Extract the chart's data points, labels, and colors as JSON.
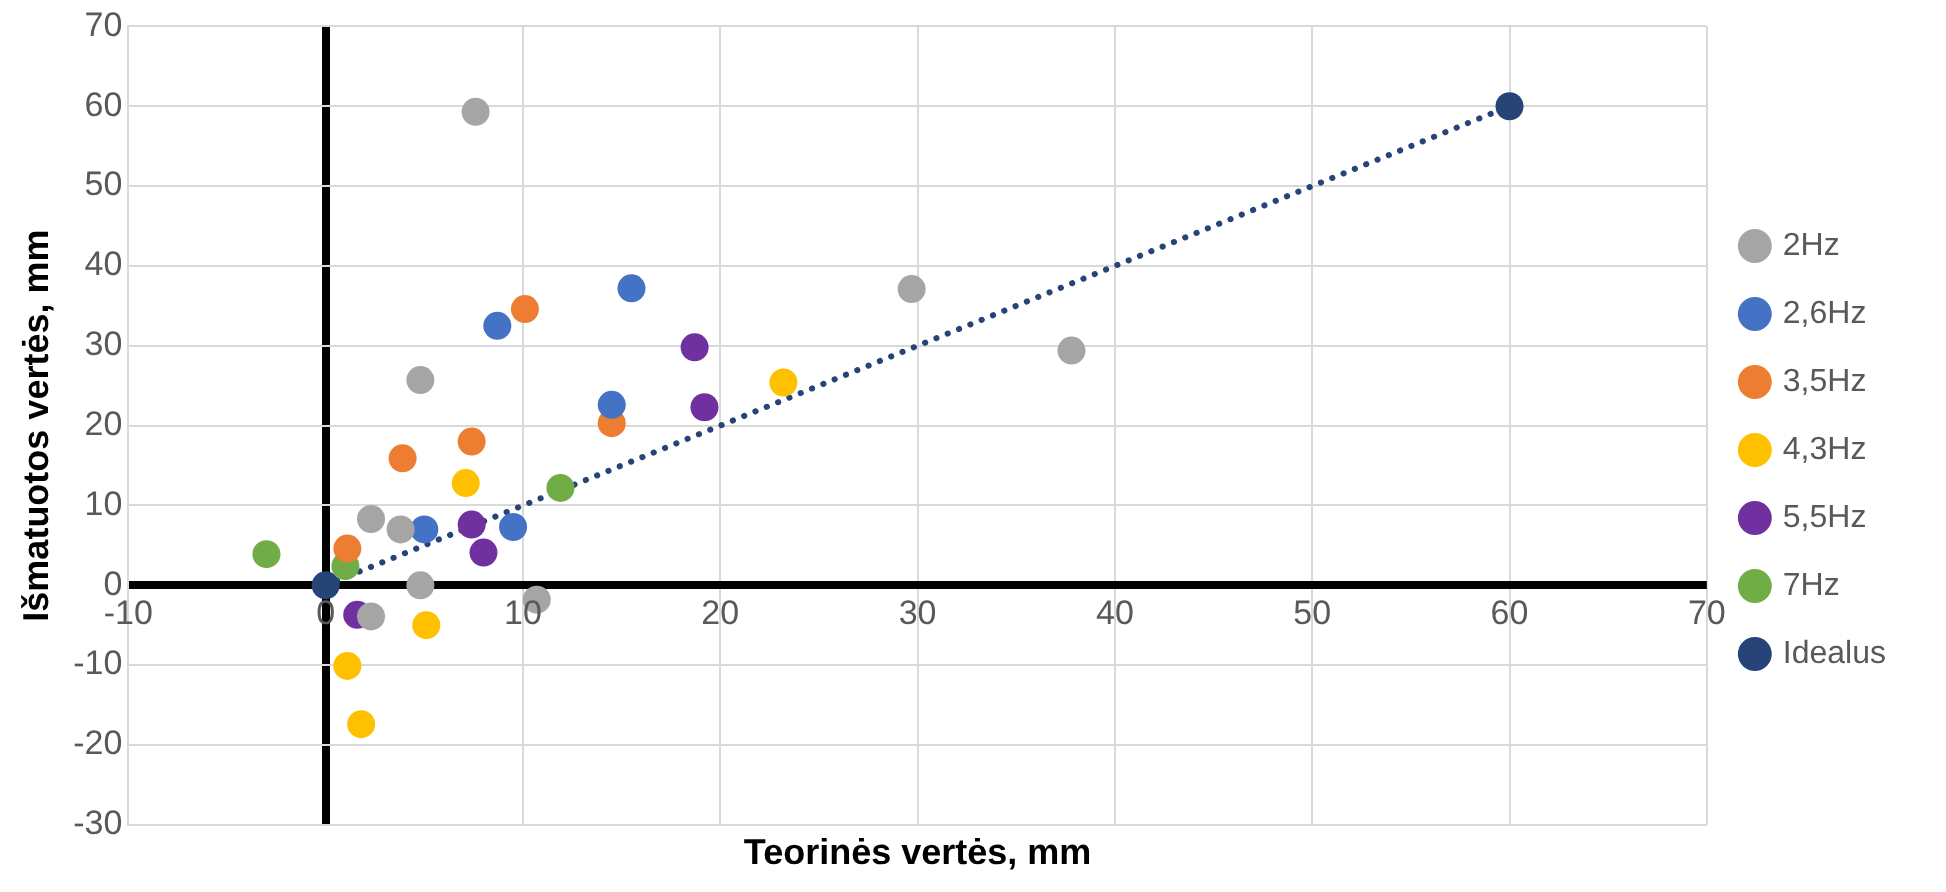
{
  "chart_data": {
    "type": "scatter",
    "xlabel": "Teorinės vertės, mm",
    "ylabel": "Išmatuotos vertės, mm",
    "xlim": [
      -10,
      70
    ],
    "xticks": [
      -10,
      0,
      10,
      20,
      30,
      40,
      50,
      60,
      70
    ],
    "ylim": [
      -30,
      70
    ],
    "yticks": [
      -30,
      -20,
      -10,
      0,
      10,
      20,
      30,
      40,
      50,
      60,
      70
    ],
    "grid": true,
    "legend": "right",
    "marker": "circle",
    "series": [
      {
        "name": "2Hz",
        "color": "#a5a5a5",
        "x": [
          7.6,
          4.8,
          2.3,
          3.8,
          4.8,
          2.3,
          10.7,
          29.7,
          37.8
        ],
        "values": [
          59.3,
          25.7,
          8.3,
          7.0,
          0,
          -3.9,
          -1.8,
          37.1,
          29.4
        ]
      },
      {
        "name": "2,6Hz",
        "color": "#4472c4",
        "x": [
          8.7,
          15.5,
          14.5,
          5.0,
          9.5
        ],
        "values": [
          32.5,
          37.2,
          22.6,
          7.0,
          7.3
        ]
      },
      {
        "name": "3,5Hz",
        "color": "#ed7d31",
        "x": [
          10.1,
          3.9,
          7.4,
          14.5,
          1.1
        ],
        "values": [
          34.6,
          15.9,
          18.0,
          20.3,
          4.6
        ]
      },
      {
        "name": "4,3Hz",
        "color": "#ffc000",
        "x": [
          23.2,
          7.1,
          5.1,
          1.1,
          1.8
        ],
        "values": [
          25.4,
          12.8,
          -5.0,
          -10.1,
          -17.4
        ]
      },
      {
        "name": "5,5Hz",
        "color": "#7030a0",
        "x": [
          18.7,
          19.2,
          7.4,
          8.0,
          1.6
        ],
        "values": [
          29.8,
          22.3,
          7.6,
          4.1,
          -3.7
        ]
      },
      {
        "name": "7Hz",
        "color": "#70ad47",
        "x": [
          -3.0,
          1.0,
          11.9
        ],
        "values": [
          3.9,
          2.4,
          12.2
        ]
      },
      {
        "name": "Idealus",
        "color": "#264478",
        "type": "line",
        "line_style": "dotted",
        "x": [
          0,
          60
        ],
        "values": [
          0,
          60
        ]
      }
    ]
  }
}
